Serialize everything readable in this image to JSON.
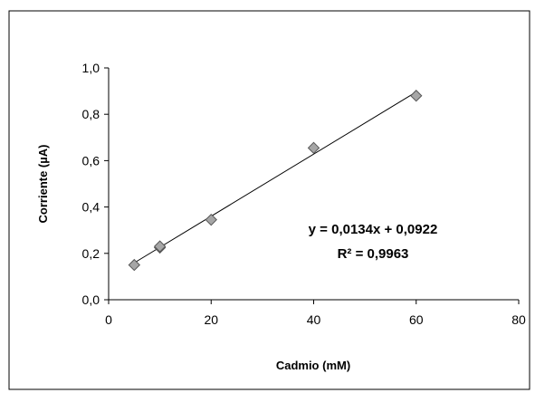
{
  "chart_data": {
    "type": "scatter",
    "xlabel": "Cadmio (mM)",
    "ylabel": "Corriente (µA)",
    "xlim": [
      0,
      80
    ],
    "ylim": [
      0.0,
      1.0
    ],
    "x_ticks": [
      0,
      20,
      40,
      60,
      80
    ],
    "y_ticks": [
      0.0,
      0.2,
      0.4,
      0.6,
      0.8,
      1.0
    ],
    "x_tick_labels": [
      "0",
      "20",
      "40",
      "60",
      "80"
    ],
    "y_tick_labels": [
      "0,0",
      "0,2",
      "0,4",
      "0,6",
      "0,8",
      "1,0"
    ],
    "grid": false,
    "series": [
      {
        "x": [
          5,
          10,
          10,
          20,
          40,
          60
        ],
        "y": [
          0.15,
          0.225,
          0.23,
          0.345,
          0.655,
          0.88
        ]
      }
    ],
    "trendline": {
      "slope": 0.0134,
      "intercept": 0.0922,
      "x_range": [
        5,
        60
      ]
    },
    "annotations": {
      "equation": "y = 0,0134x + 0,0922",
      "r_squared": "R² = 0,9963"
    }
  }
}
